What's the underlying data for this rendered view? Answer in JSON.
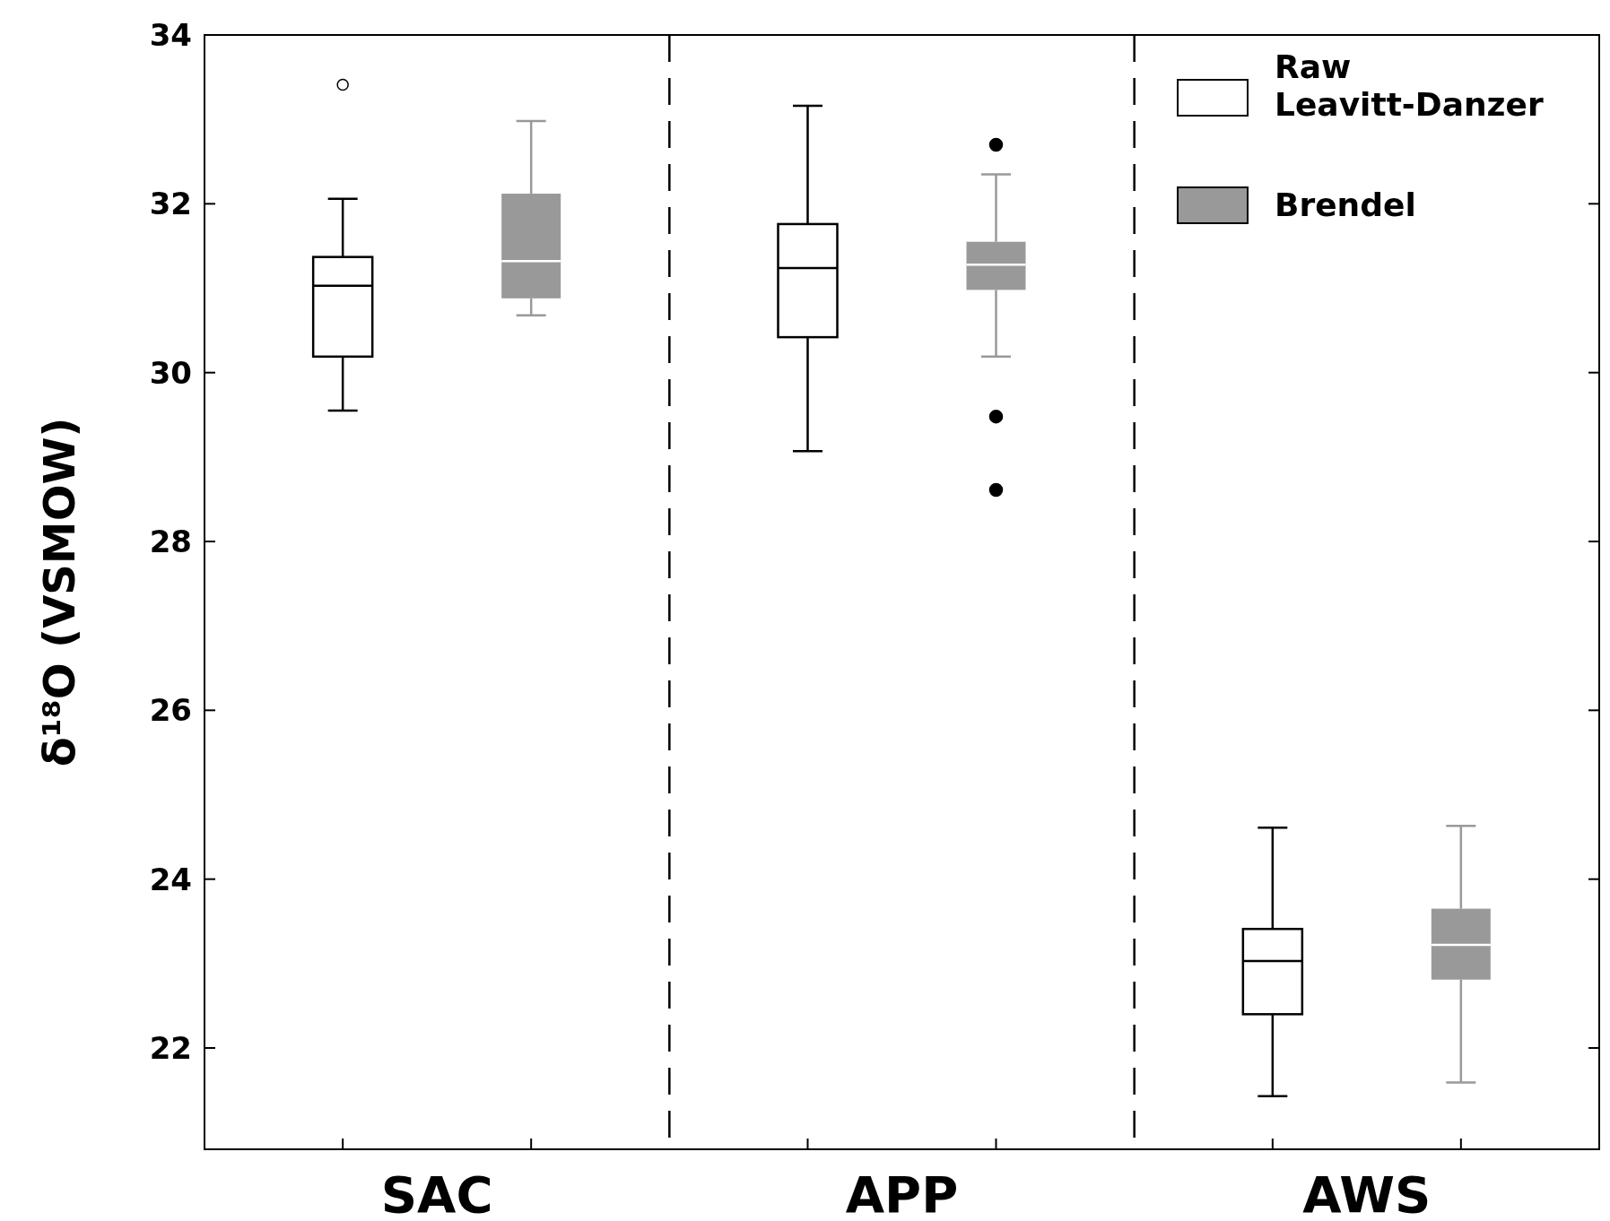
{
  "chart_data": {
    "type": "box",
    "ylabel": "δ¹⁸O (VSMOW)",
    "categories": [
      "SAC",
      "APP",
      "AWS"
    ],
    "ylim": [
      20.8,
      34
    ],
    "yticks": [
      22,
      24,
      26,
      28,
      30,
      32,
      34
    ],
    "grid": false,
    "legend": "top right",
    "series": [
      {
        "name": "Raw Leavitt-Danzer",
        "color": "#ffffff",
        "boxes": [
          {
            "low": 29.55,
            "q1": 30.19,
            "median": 31.03,
            "q3": 31.37,
            "high": 32.06,
            "outliers": [
              33.41
            ]
          },
          {
            "low": 29.07,
            "q1": 30.42,
            "median": 31.24,
            "q3": 31.76,
            "high": 33.16
          },
          {
            "low": 21.43,
            "q1": 22.4,
            "median": 23.03,
            "q3": 23.41,
            "high": 24.61
          }
        ]
      },
      {
        "name": "Brendel",
        "color": "#999999",
        "boxes": [
          {
            "low": 30.68,
            "q1": 30.88,
            "median": 31.32,
            "q3": 32.12,
            "high": 32.98
          },
          {
            "low": 30.19,
            "q1": 30.98,
            "median": 31.28,
            "q3": 31.55,
            "high": 32.35,
            "outliers": [
              32.7,
              29.48,
              28.61
            ]
          },
          {
            "low": 21.59,
            "q1": 22.81,
            "median": 23.22,
            "q3": 23.65,
            "high": 24.63
          }
        ]
      }
    ]
  }
}
